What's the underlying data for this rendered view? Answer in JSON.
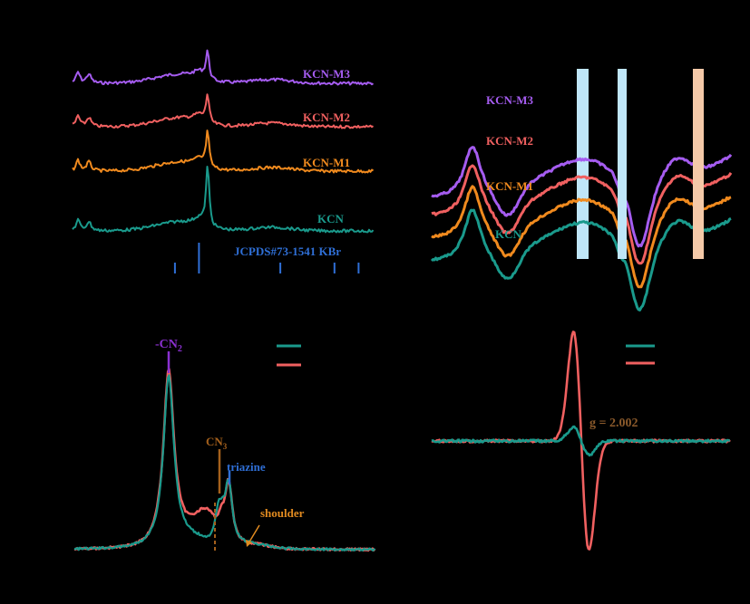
{
  "colors": {
    "background": "#000000",
    "kcn": "#1a9a8c",
    "m1": "#f08a1e",
    "m2": "#f06060",
    "m3": "#a55cf0",
    "ref": "#2f6fd6",
    "cyan_band": "#bfe6f8",
    "orange_band": "#f4c9a8",
    "cn2_label": "#8a30d0",
    "cn3_label": "#a4601c",
    "triazine_label": "#2f6fd6",
    "shoulder_label": "#e08a20",
    "g_label": "#8b5a2b"
  },
  "chart_data": [
    {
      "panel": "xrd",
      "type": "line",
      "series": [
        {
          "name": "KCN-M3",
          "color_key": "m3",
          "peak_x": 0.45,
          "peak_h": 0.55
        },
        {
          "name": "KCN-M2",
          "color_key": "m2",
          "peak_x": 0.45,
          "peak_h": 0.55
        },
        {
          "name": "KCN-M1",
          "color_key": "m1",
          "peak_x": 0.45,
          "peak_h": 0.7
        },
        {
          "name": "KCN",
          "color_key": "kcn",
          "peak_x": 0.45,
          "peak_h": 1.0
        }
      ],
      "reference": {
        "label": "JCPDS#73-1541 KBr",
        "sticks": [
          0.34,
          0.42,
          0.69,
          0.87,
          0.95
        ]
      }
    },
    {
      "panel": "ftir",
      "type": "line",
      "series": [
        {
          "name": "KCN-M3",
          "color_key": "m3"
        },
        {
          "name": "KCN-M2",
          "color_key": "m2"
        },
        {
          "name": "KCN-M1",
          "color_key": "m1"
        },
        {
          "name": "KCN",
          "color_key": "kcn"
        }
      ],
      "bands": [
        "cyan",
        "cyan",
        "orange"
      ]
    },
    {
      "panel": "xps",
      "type": "line",
      "series": [
        {
          "name": "",
          "color_key": "kcn"
        },
        {
          "name": "",
          "color_key": "m2"
        }
      ],
      "annotations": [
        "-CN2",
        "CN3",
        "triazine",
        "shoulder"
      ]
    },
    {
      "panel": "epr",
      "type": "line",
      "series": [
        {
          "name": "",
          "color_key": "kcn"
        },
        {
          "name": "",
          "color_key": "m2"
        }
      ],
      "annotations": [
        "g = 2.002"
      ]
    }
  ],
  "labels": {
    "a_m3": "KCN-M3",
    "a_m2": "KCN-M2",
    "a_m1": "KCN-M1",
    "a_kcn": "KCN",
    "a_ref": "JCPDS#73-1541 KBr",
    "b_m3": "KCN-M3",
    "b_m2": "KCN-M2",
    "b_m1": "KCN-M1",
    "b_kcn": "KCN",
    "c_cn2": "-CN",
    "c_cn2_sub": "2",
    "c_cn3": "CN",
    "c_cn3_sub": "3",
    "c_triazine": "triazine",
    "c_shoulder": "shoulder",
    "d_g": "g = 2.002"
  }
}
